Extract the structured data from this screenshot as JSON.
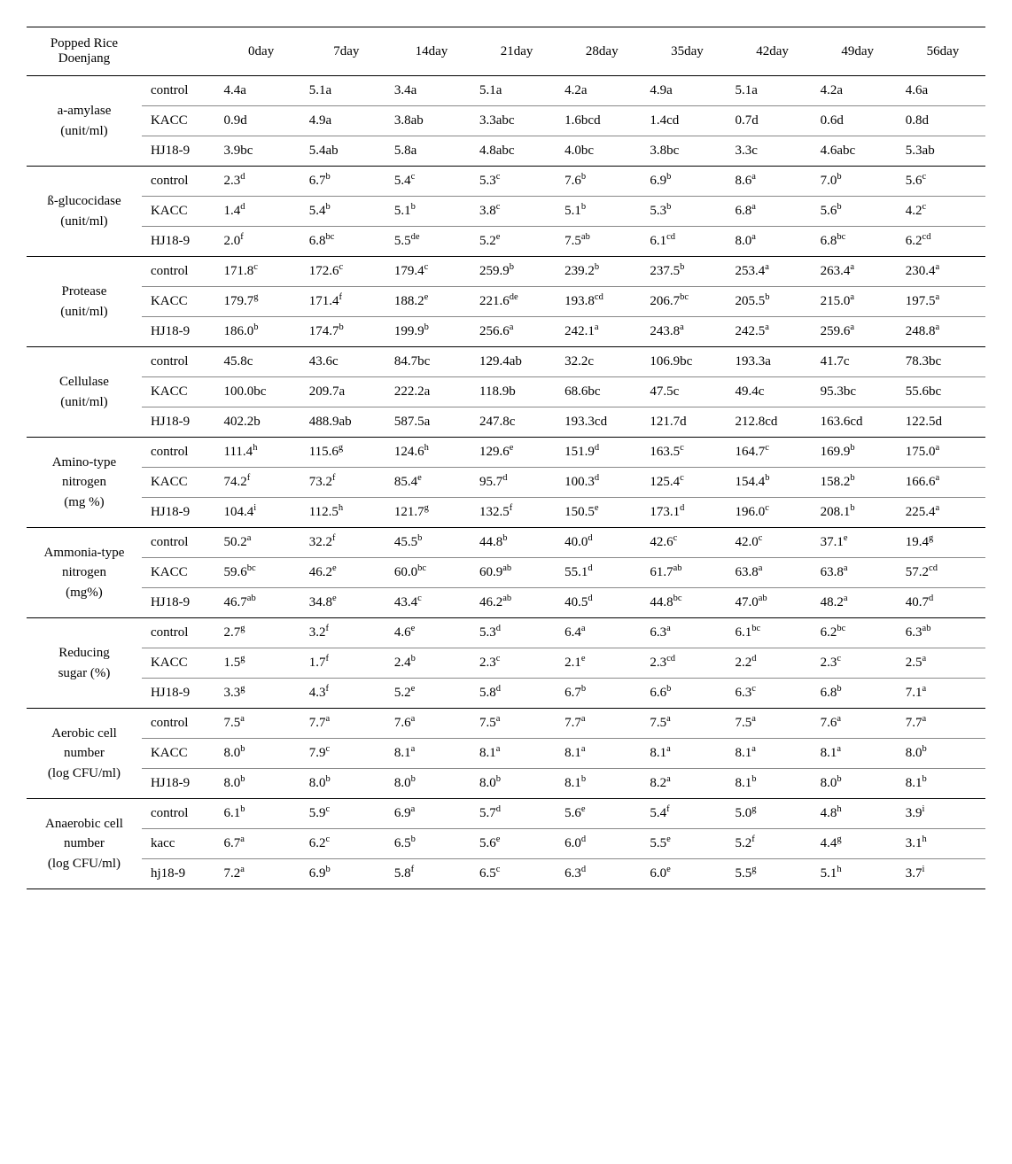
{
  "columns": [
    "0day",
    "7day",
    "14day",
    "21day",
    "28day",
    "35day",
    "42day",
    "49day",
    "56day"
  ],
  "corner": "Popped Rice\nDoenjang",
  "groups": [
    {
      "label": "a-amylase\n(unit/ml)",
      "sup": false,
      "rows": [
        {
          "t": "control",
          "v": [
            [
              "4.4",
              "a"
            ],
            [
              "5.1",
              "a"
            ],
            [
              "3.4",
              "a"
            ],
            [
              "5.1",
              "a"
            ],
            [
              "4.2",
              "a"
            ],
            [
              "4.9",
              "a"
            ],
            [
              "5.1",
              "a"
            ],
            [
              "4.2",
              "a"
            ],
            [
              "4.6",
              "a"
            ]
          ]
        },
        {
          "t": "KACC",
          "v": [
            [
              "0.9",
              "d"
            ],
            [
              "4.9",
              "a"
            ],
            [
              "3.8",
              "ab"
            ],
            [
              "3.3",
              "abc"
            ],
            [
              "1.6",
              "bcd"
            ],
            [
              "1.4",
              "cd"
            ],
            [
              "0.7",
              "d"
            ],
            [
              "0.6",
              "d"
            ],
            [
              "0.8",
              "d"
            ]
          ]
        },
        {
          "t": "HJ18-9",
          "v": [
            [
              "3.9",
              "bc"
            ],
            [
              "5.4",
              "ab"
            ],
            [
              "5.8",
              "a"
            ],
            [
              "4.8",
              "abc"
            ],
            [
              "4.0",
              "bc"
            ],
            [
              "3.8",
              "bc"
            ],
            [
              "3.3",
              "c"
            ],
            [
              "4.6",
              "abc"
            ],
            [
              "5.3",
              "ab"
            ]
          ]
        }
      ]
    },
    {
      "label": "ß-glucocidase\n(unit/ml)",
      "sup": true,
      "rows": [
        {
          "t": "control",
          "v": [
            [
              "2.3",
              "d"
            ],
            [
              "6.7",
              "b"
            ],
            [
              "5.4",
              "c"
            ],
            [
              "5.3",
              "c"
            ],
            [
              "7.6",
              "b"
            ],
            [
              "6.9",
              "b"
            ],
            [
              "8.6",
              "a"
            ],
            [
              "7.0",
              "b"
            ],
            [
              "5.6",
              "c"
            ]
          ]
        },
        {
          "t": "KACC",
          "v": [
            [
              "1.4",
              "d"
            ],
            [
              "5.4",
              "b"
            ],
            [
              "5.1",
              "b"
            ],
            [
              "3.8",
              "c"
            ],
            [
              "5.1",
              "b"
            ],
            [
              "5.3",
              "b"
            ],
            [
              "6.8",
              "a"
            ],
            [
              "5.6",
              "b"
            ],
            [
              "4.2",
              "c"
            ]
          ]
        },
        {
          "t": "HJ18-9",
          "v": [
            [
              "2.0",
              "f"
            ],
            [
              "6.8",
              "bc"
            ],
            [
              "5.5",
              "de"
            ],
            [
              "5.2",
              "e"
            ],
            [
              "7.5",
              "ab"
            ],
            [
              "6.1",
              "cd"
            ],
            [
              "8.0",
              "a"
            ],
            [
              "6.8",
              "bc"
            ],
            [
              "6.2",
              "cd"
            ]
          ]
        }
      ]
    },
    {
      "label": "Protease\n(unit/ml)",
      "sup": true,
      "rows": [
        {
          "t": "control",
          "v": [
            [
              "171.8",
              "c"
            ],
            [
              "172.6",
              "c"
            ],
            [
              "179.4",
              "c"
            ],
            [
              "259.9",
              "b"
            ],
            [
              "239.2",
              "b"
            ],
            [
              "237.5",
              "b"
            ],
            [
              "253.4",
              "a"
            ],
            [
              "263.4",
              "a"
            ],
            [
              "230.4",
              "a"
            ]
          ]
        },
        {
          "t": "KACC",
          "v": [
            [
              "179.7",
              "g"
            ],
            [
              "171.4",
              "f"
            ],
            [
              "188.2",
              "e"
            ],
            [
              "221.6",
              "de"
            ],
            [
              "193.8",
              "cd"
            ],
            [
              "206.7",
              "bc"
            ],
            [
              "205.5",
              "b"
            ],
            [
              "215.0",
              "a"
            ],
            [
              "197.5",
              "a"
            ]
          ]
        },
        {
          "t": "HJ18-9",
          "v": [
            [
              "186.0",
              "b"
            ],
            [
              "174.7",
              "b"
            ],
            [
              "199.9",
              "b"
            ],
            [
              "256.6",
              "a"
            ],
            [
              "242.1",
              "a"
            ],
            [
              "243.8",
              "a"
            ],
            [
              "242.5",
              "a"
            ],
            [
              "259.6",
              "a"
            ],
            [
              "248.8",
              "a"
            ]
          ]
        }
      ]
    },
    {
      "label": "Cellulase\n(unit/ml)",
      "sup": false,
      "rows": [
        {
          "t": "control",
          "v": [
            [
              "45.8",
              "c"
            ],
            [
              "43.6",
              "c"
            ],
            [
              "84.7",
              "bc"
            ],
            [
              "129.4",
              "ab"
            ],
            [
              "32.2",
              "c"
            ],
            [
              "106.9",
              "bc"
            ],
            [
              "193.3",
              "a"
            ],
            [
              "41.7",
              "c"
            ],
            [
              "78.3",
              "bc"
            ]
          ]
        },
        {
          "t": "KACC",
          "v": [
            [
              "100.0",
              "bc"
            ],
            [
              "209.7",
              "a"
            ],
            [
              "222.2",
              "a"
            ],
            [
              "118.9",
              "b"
            ],
            [
              "68.6",
              "bc"
            ],
            [
              "47.5",
              "c"
            ],
            [
              "49.4",
              "c"
            ],
            [
              "95.3",
              "bc"
            ],
            [
              "55.6",
              "bc"
            ]
          ]
        },
        {
          "t": "HJ18-9",
          "v": [
            [
              "402.2",
              "b"
            ],
            [
              "488.9",
              "ab"
            ],
            [
              "587.5",
              "a"
            ],
            [
              "247.8",
              "c"
            ],
            [
              "193.3",
              "cd"
            ],
            [
              "121.7",
              "d"
            ],
            [
              "212.8",
              "cd"
            ],
            [
              "163.6",
              "cd"
            ],
            [
              "122.5",
              "d"
            ]
          ]
        }
      ]
    },
    {
      "label": "Amino-type\nnitrogen\n(mg %)",
      "sup": true,
      "rows": [
        {
          "t": "control",
          "v": [
            [
              "111.4",
              "h"
            ],
            [
              "115.6",
              "g"
            ],
            [
              "124.6",
              "h"
            ],
            [
              "129.6",
              "e"
            ],
            [
              "151.9",
              "d"
            ],
            [
              "163.5",
              "c"
            ],
            [
              "164.7",
              "c"
            ],
            [
              "169.9",
              "b"
            ],
            [
              "175.0",
              "a"
            ]
          ]
        },
        {
          "t": "KACC",
          "v": [
            [
              "74.2",
              "f"
            ],
            [
              "73.2",
              "f"
            ],
            [
              "85.4",
              "e"
            ],
            [
              "95.7",
              "d"
            ],
            [
              "100.3",
              "d"
            ],
            [
              "125.4",
              "c"
            ],
            [
              "154.4",
              "b"
            ],
            [
              "158.2",
              "b"
            ],
            [
              "166.6",
              "a"
            ]
          ]
        },
        {
          "t": "HJ18-9",
          "v": [
            [
              "104.4",
              "i"
            ],
            [
              "112.5",
              "h"
            ],
            [
              "121.7",
              "g"
            ],
            [
              "132.5",
              "f"
            ],
            [
              "150.5",
              "e"
            ],
            [
              "173.1",
              "d"
            ],
            [
              "196.0",
              "c"
            ],
            [
              "208.1",
              "b"
            ],
            [
              "225.4",
              "a"
            ]
          ]
        }
      ]
    },
    {
      "label": "Ammonia-type\nnitrogen\n(mg%)",
      "sup": true,
      "rows": [
        {
          "t": "control",
          "v": [
            [
              "50.2",
              "a"
            ],
            [
              "32.2",
              "f"
            ],
            [
              "45.5",
              "b"
            ],
            [
              "44.8",
              "b"
            ],
            [
              "40.0",
              "d"
            ],
            [
              "42.6",
              "c"
            ],
            [
              "42.0",
              "c"
            ],
            [
              "37.1",
              "e"
            ],
            [
              "19.4",
              "g"
            ]
          ]
        },
        {
          "t": "KACC",
          "v": [
            [
              "59.6",
              "bc"
            ],
            [
              "46.2",
              "e"
            ],
            [
              "60.0",
              "bc"
            ],
            [
              "60.9",
              "ab"
            ],
            [
              "55.1",
              "d"
            ],
            [
              "61.7",
              "ab"
            ],
            [
              "63.8",
              "a"
            ],
            [
              "63.8",
              "a"
            ],
            [
              "57.2",
              "cd"
            ]
          ]
        },
        {
          "t": "HJ18-9",
          "v": [
            [
              "46.7",
              "ab"
            ],
            [
              "34.8",
              "e"
            ],
            [
              "43.4",
              "c"
            ],
            [
              "46.2",
              "ab"
            ],
            [
              "40.5",
              "d"
            ],
            [
              "44.8",
              "bc"
            ],
            [
              "47.0",
              "ab"
            ],
            [
              "48.2",
              "a"
            ],
            [
              "40.7",
              "d"
            ]
          ]
        }
      ]
    },
    {
      "label": "Reducing\nsugar (%)",
      "sup": true,
      "rows": [
        {
          "t": "control",
          "v": [
            [
              "2.7",
              "g"
            ],
            [
              "3.2",
              "f"
            ],
            [
              "4.6",
              "e"
            ],
            [
              "5.3",
              "d"
            ],
            [
              "6.4",
              "a"
            ],
            [
              "6.3",
              "a"
            ],
            [
              "6.1",
              "bc"
            ],
            [
              "6.2",
              "bc"
            ],
            [
              "6.3",
              "ab"
            ]
          ]
        },
        {
          "t": "KACC",
          "v": [
            [
              "1.5",
              "g"
            ],
            [
              "1.7",
              "f"
            ],
            [
              "2.4",
              "b"
            ],
            [
              "2.3",
              "c"
            ],
            [
              "2.1",
              "e"
            ],
            [
              "2.3",
              "cd"
            ],
            [
              "2.2",
              "d"
            ],
            [
              "2.3",
              "c"
            ],
            [
              "2.5",
              "a"
            ]
          ]
        },
        {
          "t": "HJ18-9",
          "v": [
            [
              "3.3",
              "g"
            ],
            [
              "4.3",
              "f"
            ],
            [
              "5.2",
              "e"
            ],
            [
              "5.8",
              "d"
            ],
            [
              "6.7",
              "b"
            ],
            [
              "6.6",
              "b"
            ],
            [
              "6.3",
              "c"
            ],
            [
              "6.8",
              "b"
            ],
            [
              "7.1",
              "a"
            ]
          ]
        }
      ]
    },
    {
      "label": "Aerobic cell\nnumber\n(log CFU/ml)",
      "sup": true,
      "rows": [
        {
          "t": "control",
          "v": [
            [
              "7.5",
              "a"
            ],
            [
              "7.7",
              "a"
            ],
            [
              "7.6",
              "a"
            ],
            [
              "7.5",
              "a"
            ],
            [
              "7.7",
              "a"
            ],
            [
              "7.5",
              "a"
            ],
            [
              "7.5",
              "a"
            ],
            [
              "7.6",
              "a"
            ],
            [
              "7.7",
              "a"
            ]
          ]
        },
        {
          "t": "KACC",
          "v": [
            [
              "8.0",
              "b"
            ],
            [
              "7.9",
              "c"
            ],
            [
              "8.1",
              "a"
            ],
            [
              "8.1",
              "a"
            ],
            [
              "8.1",
              "a"
            ],
            [
              "8.1",
              "a"
            ],
            [
              "8.1",
              "a"
            ],
            [
              "8.1",
              "a"
            ],
            [
              "8.0",
              "b"
            ]
          ]
        },
        {
          "t": "HJ18-9",
          "v": [
            [
              "8.0",
              "b"
            ],
            [
              "8.0",
              "b"
            ],
            [
              "8.0",
              "b"
            ],
            [
              "8.0",
              "b"
            ],
            [
              "8.1",
              "b"
            ],
            [
              "8.2",
              "a"
            ],
            [
              "8.1",
              "b"
            ],
            [
              "8.0",
              "b"
            ],
            [
              "8.1",
              "b"
            ]
          ]
        }
      ]
    },
    {
      "label": "Anaerobic cell\nnumber\n(log CFU/ml)",
      "sup": true,
      "rows": [
        {
          "t": "control",
          "v": [
            [
              "6.1",
              "b"
            ],
            [
              "5.9",
              "c"
            ],
            [
              "6.9",
              "a"
            ],
            [
              "5.7",
              "d"
            ],
            [
              "5.6",
              "e"
            ],
            [
              "5.4",
              "f"
            ],
            [
              "5.0",
              "g"
            ],
            [
              "4.8",
              "h"
            ],
            [
              "3.9",
              "i"
            ]
          ]
        },
        {
          "t": "kacc",
          "v": [
            [
              "6.7",
              "a"
            ],
            [
              "6.2",
              "c"
            ],
            [
              "6.5",
              "b"
            ],
            [
              "5.6",
              "e"
            ],
            [
              "6.0",
              "d"
            ],
            [
              "5.5",
              "e"
            ],
            [
              "5.2",
              "f"
            ],
            [
              "4.4",
              "g"
            ],
            [
              "3.1",
              "h"
            ]
          ]
        },
        {
          "t": "hj18-9",
          "v": [
            [
              "7.2",
              "a"
            ],
            [
              "6.9",
              "b"
            ],
            [
              "5.8",
              "f"
            ],
            [
              "6.5",
              "c"
            ],
            [
              "6.3",
              "d"
            ],
            [
              "6.0",
              "e"
            ],
            [
              "5.5",
              "g"
            ],
            [
              "5.1",
              "h"
            ],
            [
              "3.7",
              "i"
            ]
          ]
        }
      ]
    }
  ]
}
